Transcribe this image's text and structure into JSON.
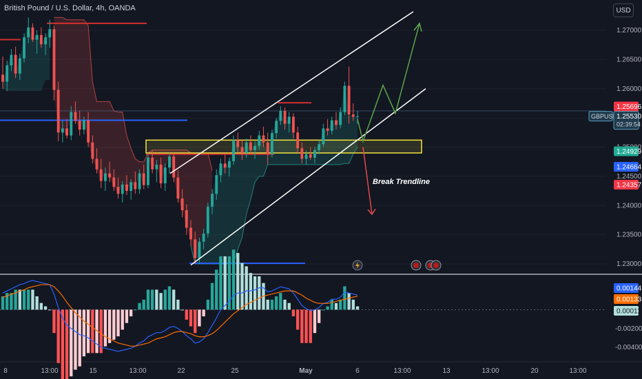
{
  "header": {
    "title": "British Pound / U.S. Dollar, 4h, OANDA",
    "currency_button": "USD"
  },
  "colors": {
    "background": "#131722",
    "bull": "#26a69a",
    "bear": "#ef5350",
    "grid": "#1e222d",
    "zone_border": "#f5e342",
    "channel": "#ffffff",
    "arrow_up": "#5aa54a",
    "arrow_down": "#e04b4b",
    "macd_line": "#2962ff",
    "signal_line": "#ff6d00"
  },
  "chart_data": [
    {
      "type": "candlestick",
      "title": "British Pound / U.S. Dollar, 4h, OANDA",
      "symbol": "GBPUSD",
      "y_ticks": [
        "1.27000",
        "1.26500",
        "1.26000",
        "1.25000",
        "1.24500",
        "1.24000",
        "1.23500",
        "1.23000"
      ],
      "ylim": [
        1.2285,
        1.2735
      ],
      "x_ticks": [
        "8",
        "13:00",
        "15",
        "13:00",
        "22",
        "25",
        "May",
        "6",
        "13:00",
        "13",
        "13:00",
        "20",
        "13:00"
      ],
      "last_price": {
        "label": "GBPUSD",
        "value": "1.25530",
        "countdown": "02:39:54"
      },
      "price_tags": [
        {
          "value": "1.25696",
          "color": "#f23645"
        },
        {
          "value": "1.24929",
          "color": "#22ab94"
        },
        {
          "value": "1.24664",
          "color": "#2962ff"
        },
        {
          "value": "1.24357",
          "color": "#f23645"
        }
      ],
      "annotations": [
        {
          "text": "Break Trendline"
        }
      ],
      "ohlc": [
        [
          1.2624,
          1.2655,
          1.26,
          1.2612
        ],
        [
          1.2612,
          1.2648,
          1.2596,
          1.264
        ],
        [
          1.264,
          1.2668,
          1.263,
          1.2658
        ],
        [
          1.2658,
          1.2672,
          1.2618,
          1.2626
        ],
        [
          1.2626,
          1.266,
          1.2615,
          1.2652
        ],
        [
          1.2652,
          1.2695,
          1.2645,
          1.2688
        ],
        [
          1.2688,
          1.2722,
          1.2678,
          1.2705
        ],
        [
          1.2705,
          1.2712,
          1.268,
          1.2684
        ],
        [
          1.2684,
          1.27,
          1.266,
          1.2692
        ],
        [
          1.2692,
          1.2705,
          1.267,
          1.2676
        ],
        [
          1.2676,
          1.2695,
          1.2658,
          1.2688
        ],
        [
          1.2688,
          1.2718,
          1.267,
          1.2702
        ],
        [
          1.2702,
          1.2708,
          1.258,
          1.2598
        ],
        [
          1.2598,
          1.2612,
          1.251,
          1.2525
        ],
        [
          1.2525,
          1.2545,
          1.2508,
          1.2532
        ],
        [
          1.2532,
          1.2548,
          1.2515,
          1.252
        ],
        [
          1.252,
          1.257,
          1.2512,
          1.256
        ],
        [
          1.256,
          1.2578,
          1.254,
          1.2545
        ],
        [
          1.2545,
          1.2562,
          1.252,
          1.253
        ],
        [
          1.253,
          1.2552,
          1.2522,
          1.2546
        ],
        [
          1.2546,
          1.256,
          1.25,
          1.2508
        ],
        [
          1.2508,
          1.252,
          1.2472,
          1.248
        ],
        [
          1.248,
          1.2498,
          1.2455,
          1.2462
        ],
        [
          1.2462,
          1.248,
          1.243,
          1.2442
        ],
        [
          1.2442,
          1.2465,
          1.2425,
          1.2455
        ],
        [
          1.2455,
          1.2475,
          1.244,
          1.2448
        ],
        [
          1.2448,
          1.2462,
          1.2425,
          1.2432
        ],
        [
          1.2432,
          1.2448,
          1.2412,
          1.242
        ],
        [
          1.242,
          1.2442,
          1.2405,
          1.2436
        ],
        [
          1.2436,
          1.2452,
          1.2418,
          1.2425
        ],
        [
          1.2425,
          1.2445,
          1.241,
          1.244
        ],
        [
          1.244,
          1.2458,
          1.242,
          1.2428
        ],
        [
          1.2428,
          1.2462,
          1.242,
          1.2455
        ],
        [
          1.2455,
          1.247,
          1.2428,
          1.2435
        ],
        [
          1.2435,
          1.249,
          1.243,
          1.2482
        ],
        [
          1.2482,
          1.2495,
          1.2455,
          1.2462
        ],
        [
          1.2462,
          1.2478,
          1.244,
          1.247
        ],
        [
          1.247,
          1.2482,
          1.243,
          1.2438
        ],
        [
          1.2438,
          1.2472,
          1.2425,
          1.2465
        ],
        [
          1.2465,
          1.249,
          1.2455,
          1.2484
        ],
        [
          1.2484,
          1.249,
          1.244,
          1.2448
        ],
        [
          1.2448,
          1.246,
          1.2405,
          1.2412
        ],
        [
          1.2412,
          1.2428,
          1.238,
          1.2392
        ],
        [
          1.2392,
          1.2402,
          1.235,
          1.2362
        ],
        [
          1.2362,
          1.2375,
          1.233,
          1.2342
        ],
        [
          1.2342,
          1.2355,
          1.23,
          1.231
        ],
        [
          1.231,
          1.2345,
          1.23,
          1.2338
        ],
        [
          1.2338,
          1.236,
          1.2325,
          1.2352
        ],
        [
          1.2352,
          1.2405,
          1.2345,
          1.2398
        ],
        [
          1.2398,
          1.2428,
          1.2385,
          1.242
        ],
        [
          1.242,
          1.2462,
          1.241,
          1.2452
        ],
        [
          1.2452,
          1.248,
          1.244,
          1.2472
        ],
        [
          1.2472,
          1.2488,
          1.2455,
          1.2465
        ],
        [
          1.2465,
          1.2482,
          1.245,
          1.2476
        ],
        [
          1.2476,
          1.252,
          1.247,
          1.2512
        ],
        [
          1.2512,
          1.2525,
          1.249,
          1.25
        ],
        [
          1.25,
          1.2512,
          1.2478,
          1.249
        ],
        [
          1.249,
          1.2515,
          1.2482,
          1.2508
        ],
        [
          1.2508,
          1.252,
          1.2488,
          1.2495
        ],
        [
          1.2495,
          1.251,
          1.248,
          1.2502
        ],
        [
          1.2502,
          1.2528,
          1.2495,
          1.252
        ],
        [
          1.252,
          1.2535,
          1.25,
          1.2508
        ],
        [
          1.2508,
          1.2525,
          1.247,
          1.2488
        ],
        [
          1.2488,
          1.253,
          1.2482,
          1.2524
        ],
        [
          1.2524,
          1.255,
          1.2515,
          1.2545
        ],
        [
          1.2545,
          1.257,
          1.2538,
          1.2562
        ],
        [
          1.2562,
          1.2568,
          1.253,
          1.254
        ],
        [
          1.254,
          1.256,
          1.2525,
          1.2552
        ],
        [
          1.2552,
          1.2558,
          1.2515,
          1.2525
        ],
        [
          1.2525,
          1.2535,
          1.249,
          1.2498
        ],
        [
          1.2498,
          1.2508,
          1.2472,
          1.248
        ],
        [
          1.248,
          1.2495,
          1.247,
          1.2488
        ],
        [
          1.2488,
          1.25,
          1.2478,
          1.2482
        ],
        [
          1.2482,
          1.25,
          1.2472,
          1.2495
        ],
        [
          1.2495,
          1.2512,
          1.2488,
          1.2505
        ],
        [
          1.2505,
          1.254,
          1.25,
          1.2532
        ],
        [
          1.2532,
          1.2548,
          1.252,
          1.2528
        ],
        [
          1.2528,
          1.2552,
          1.2522,
          1.2546
        ],
        [
          1.2546,
          1.256,
          1.253,
          1.2538
        ],
        [
          1.2538,
          1.2568,
          1.2532,
          1.256
        ],
        [
          1.256,
          1.2612,
          1.2555,
          1.2605
        ],
        [
          1.2605,
          1.2638,
          1.254,
          1.2556
        ],
        [
          1.2556,
          1.2575,
          1.2545,
          1.2552
        ],
        [
          1.2552,
          1.2562,
          1.254,
          1.2553
        ]
      ]
    },
    {
      "type": "macd",
      "y_ticks": [
        "-0.00200",
        "-0.00400"
      ],
      "value_tags": [
        {
          "value": "0.00144",
          "color": "#2962ff"
        },
        {
          "value": "0.00133",
          "color": "#ff6d00"
        },
        {
          "value": "0.00011",
          "color": "#b2dfdb"
        }
      ],
      "ylim": [
        -0.0048,
        0.003
      ],
      "macd": [
        0.0016,
        0.0018,
        0.002,
        0.0022,
        0.0024,
        0.0025,
        0.0027,
        0.0028,
        0.0027,
        0.0026,
        0.0025,
        0.0024,
        0.0015,
        0.0002,
        -0.0008,
        -0.0015,
        -0.0018,
        -0.0021,
        -0.0024,
        -0.0025,
        -0.0027,
        -0.003,
        -0.0033,
        -0.0036,
        -0.0037,
        -0.0038,
        -0.0039,
        -0.004,
        -0.0039,
        -0.0038,
        -0.0037,
        -0.0035,
        -0.0032,
        -0.003,
        -0.0026,
        -0.0024,
        -0.0022,
        -0.0022,
        -0.002,
        -0.0017,
        -0.0016,
        -0.0018,
        -0.0021,
        -0.0025,
        -0.0028,
        -0.0032,
        -0.0031,
        -0.0028,
        -0.0022,
        -0.0015,
        -0.0008,
        0.0,
        0.0004,
        0.0008,
        0.0014,
        0.0016,
        0.0016,
        0.0018,
        0.0018,
        0.0019,
        0.0021,
        0.0021,
        0.0017,
        0.0018,
        0.002,
        0.0022,
        0.0021,
        0.002,
        0.0016,
        0.001,
        0.0004,
        0.0001,
        -0.0001,
        0.0,
        0.0002,
        0.0006,
        0.0007,
        0.001,
        0.001,
        0.0012,
        0.0017,
        0.0016,
        0.0015,
        0.0014
      ],
      "signal": [
        0.0012,
        0.0013,
        0.0015,
        0.0016,
        0.0018,
        0.0019,
        0.0021,
        0.0022,
        0.0023,
        0.0024,
        0.0024,
        0.0024,
        0.0022,
        0.0018,
        0.0013,
        0.0007,
        0.0002,
        -0.0003,
        -0.0007,
        -0.0011,
        -0.0014,
        -0.0017,
        -0.002,
        -0.0023,
        -0.0026,
        -0.0028,
        -0.003,
        -0.0032,
        -0.0033,
        -0.0034,
        -0.0035,
        -0.0035,
        -0.0034,
        -0.0033,
        -0.0032,
        -0.003,
        -0.0028,
        -0.0027,
        -0.0026,
        -0.0024,
        -0.0022,
        -0.0021,
        -0.0021,
        -0.0022,
        -0.0023,
        -0.0025,
        -0.0026,
        -0.0026,
        -0.0025,
        -0.0023,
        -0.002,
        -0.0016,
        -0.0012,
        -0.0008,
        -0.0004,
        -0.0001,
        0.0002,
        0.0005,
        0.0007,
        0.0009,
        0.0011,
        0.0013,
        0.0014,
        0.0015,
        0.0016,
        0.0017,
        0.0018,
        0.0018,
        0.0018,
        0.0016,
        0.0014,
        0.0011,
        0.0009,
        0.0007,
        0.0006,
        0.0006,
        0.0006,
        0.0007,
        0.0008,
        0.0009,
        0.001,
        0.0011,
        0.0012,
        0.0013
      ]
    }
  ]
}
